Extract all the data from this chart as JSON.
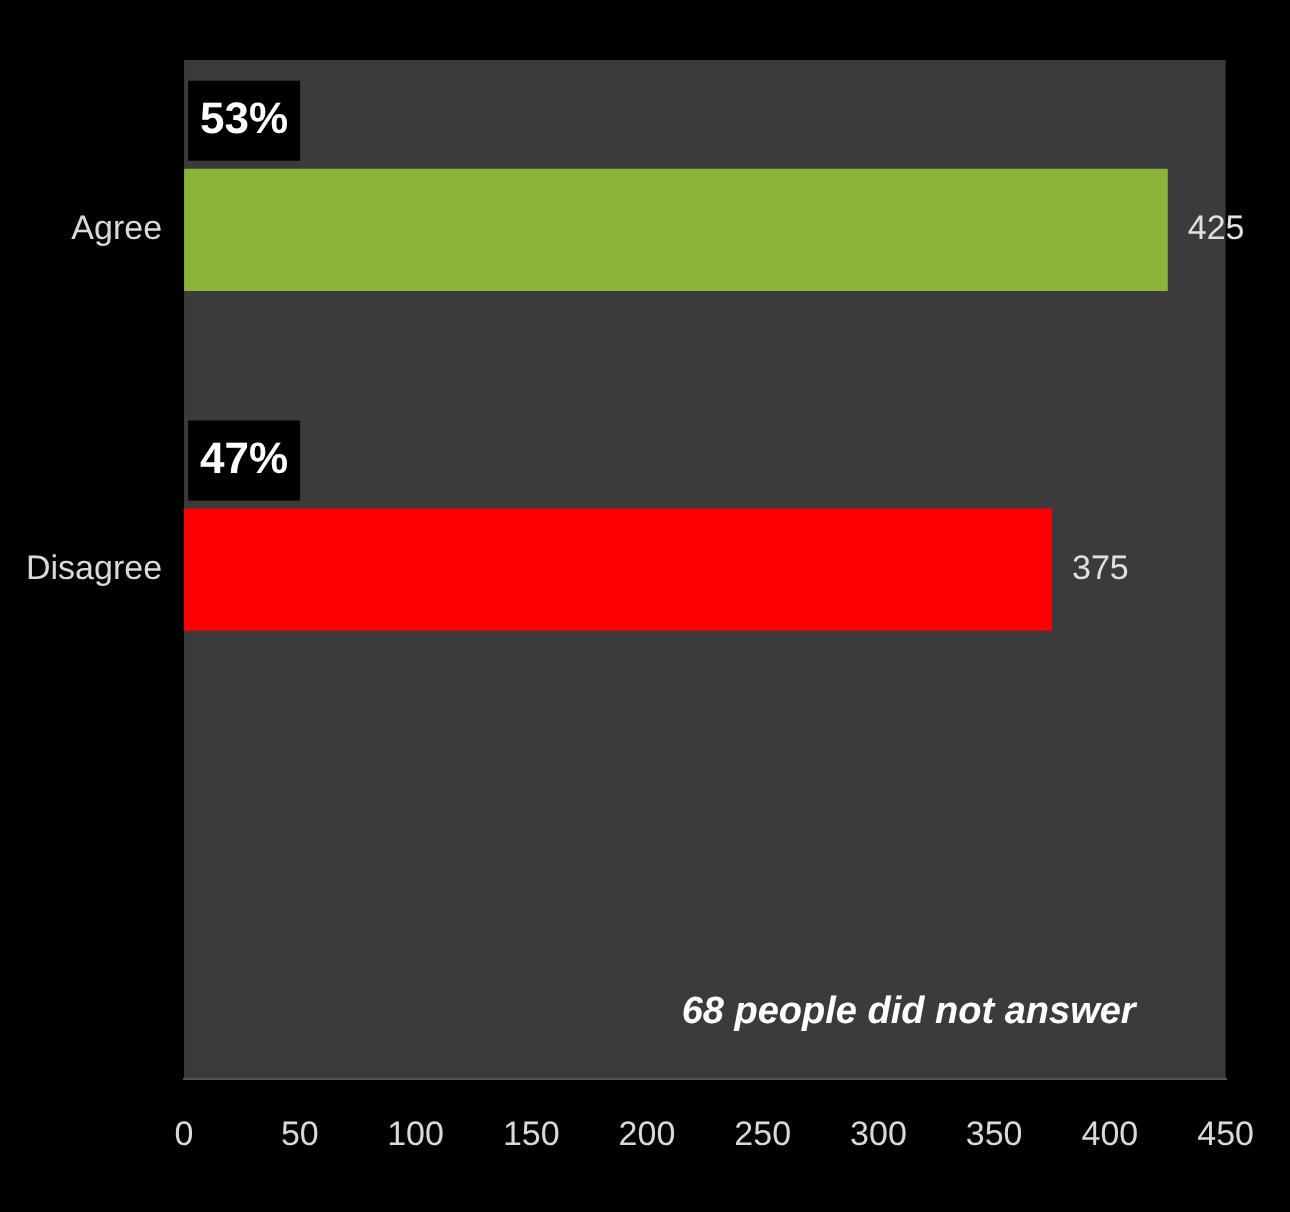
{
  "chart_data": {
    "type": "bar",
    "orientation": "horizontal",
    "categories": [
      "Agree",
      "Disagree",
      null
    ],
    "values": [
      425,
      375,
      null
    ],
    "colors": [
      "#8db33a",
      "#ff0000",
      "#000000"
    ],
    "xlim": [
      0,
      450
    ],
    "xticks": [
      0,
      50,
      100,
      150,
      200,
      250,
      300,
      350,
      400,
      450
    ],
    "grid": false,
    "legend": false,
    "data_labels": true,
    "annotations": [
      {
        "text": "53%",
        "x": 0,
        "y": "Agree"
      },
      {
        "text": "47%",
        "x": 0,
        "y": "Disagree"
      },
      "68 people did not answer"
    ]
  }
}
